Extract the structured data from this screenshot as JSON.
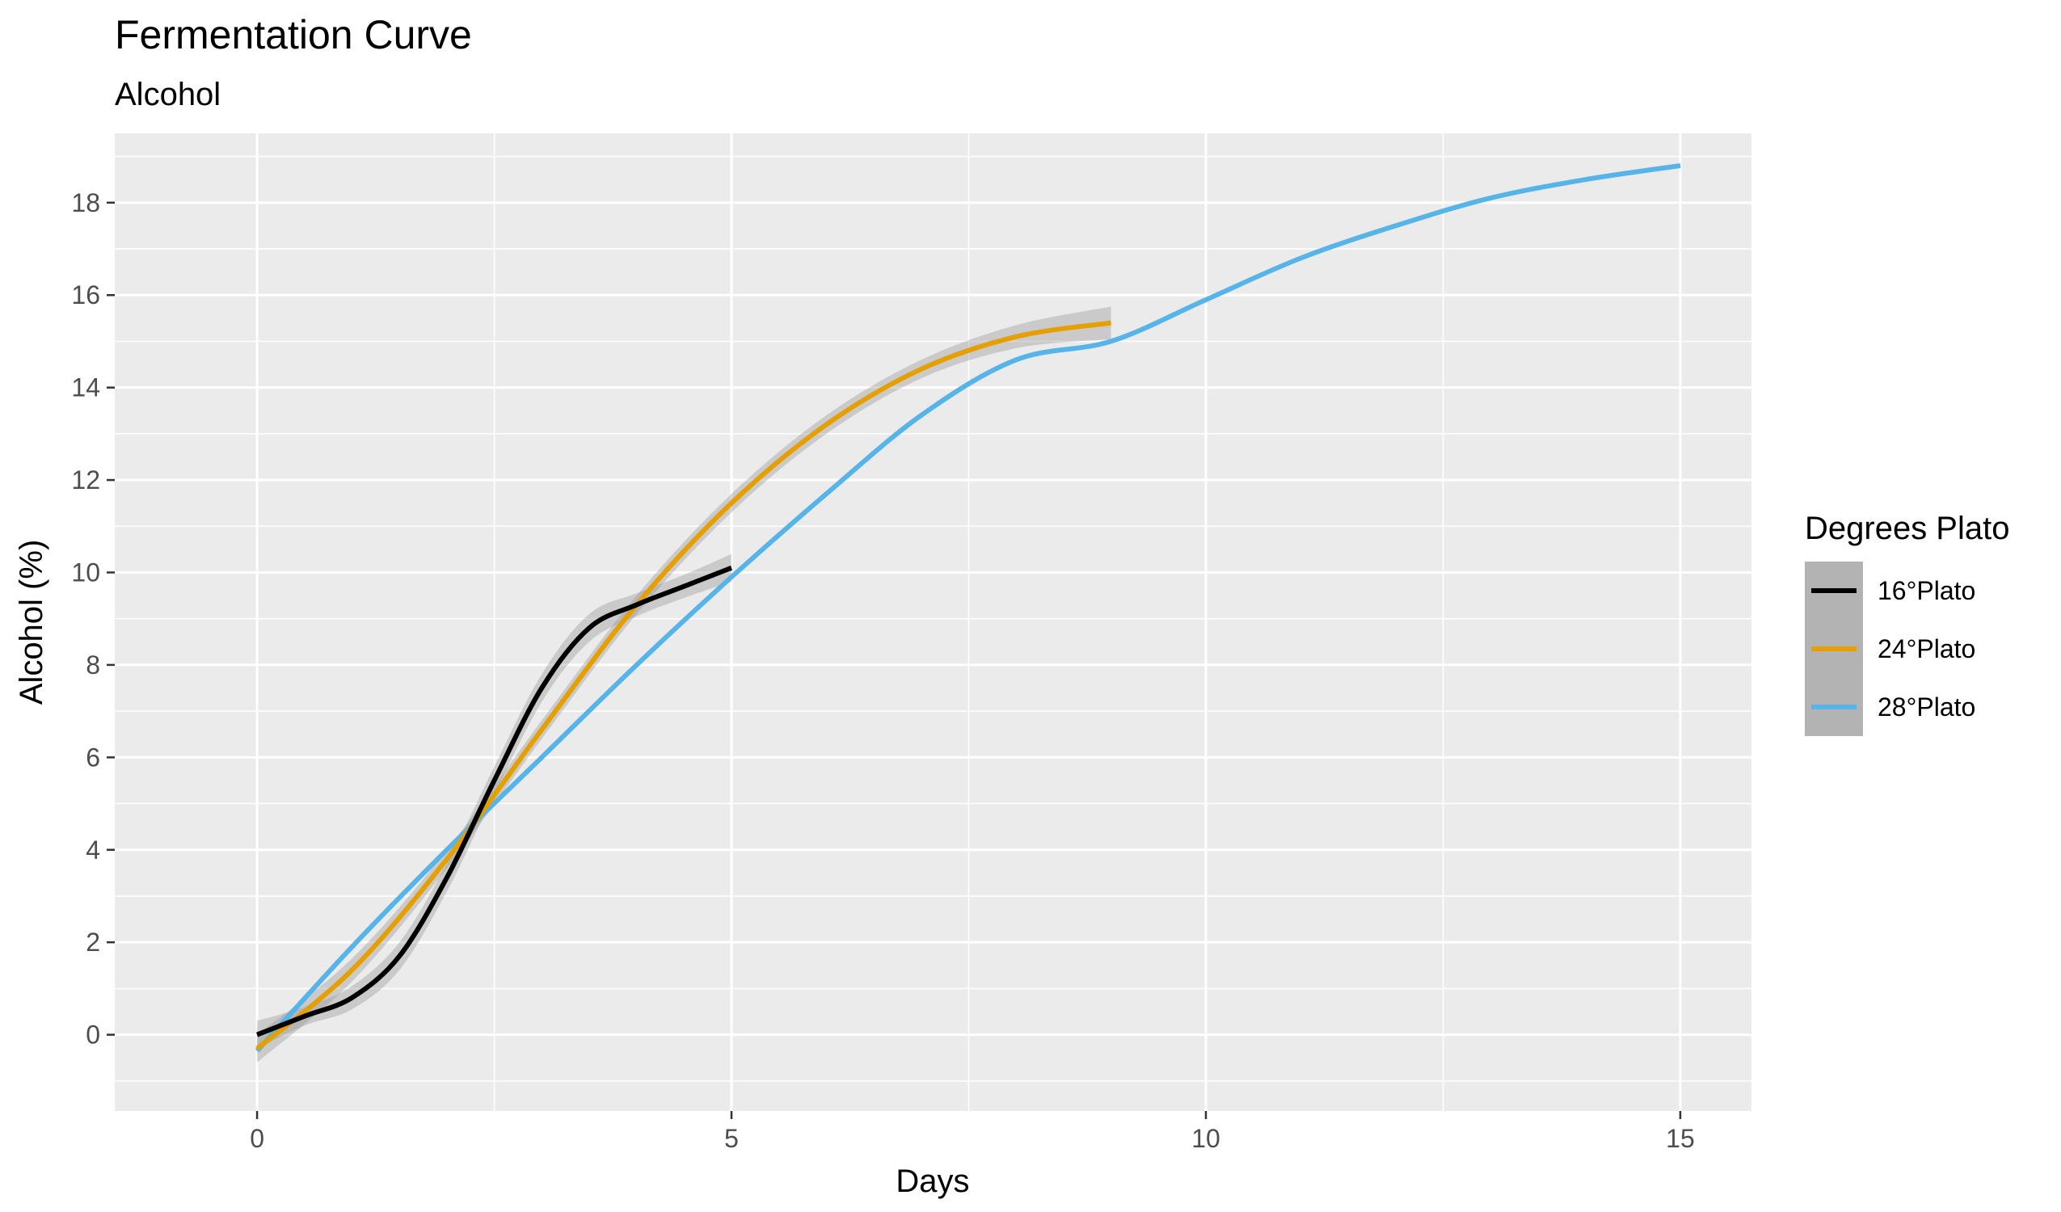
{
  "chart_data": {
    "type": "line",
    "title": "Fermentation Curve",
    "subtitle": "Alcohol",
    "xlabel": "Days",
    "ylabel": "Alcohol (%)",
    "xlim": [
      -1.5,
      15.75
    ],
    "ylim": [
      -1.65,
      19.5
    ],
    "x_ticks": [
      0,
      5,
      10,
      15
    ],
    "y_ticks": [
      0,
      2,
      4,
      6,
      8,
      10,
      12,
      14,
      16,
      18
    ],
    "grid": true,
    "legend": {
      "title": "Degrees Plato",
      "placement": "right"
    },
    "series": [
      {
        "name": "16°Plato",
        "color": "#000000",
        "confidence_band": true,
        "points": [
          [
            0,
            0
          ],
          [
            0.5,
            0.4
          ],
          [
            1,
            0.8
          ],
          [
            1.5,
            1.7
          ],
          [
            2,
            3.4
          ],
          [
            2.5,
            5.5
          ],
          [
            3,
            7.5
          ],
          [
            3.5,
            8.8
          ],
          [
            4,
            9.3
          ],
          [
            4.5,
            9.7
          ],
          [
            5,
            10.1
          ]
        ],
        "band_halfwidth": [
          0.3,
          0.2,
          0.25,
          0.3,
          0.3,
          0.3,
          0.3,
          0.3,
          0.25,
          0.25,
          0.3
        ]
      },
      {
        "name": "24°Plato",
        "color": "#E69F00",
        "confidence_band": true,
        "points": [
          [
            0,
            -0.3
          ],
          [
            1,
            1.4
          ],
          [
            2,
            3.8
          ],
          [
            3,
            6.6
          ],
          [
            4,
            9.3
          ],
          [
            5,
            11.5
          ],
          [
            6,
            13.2
          ],
          [
            7,
            14.4
          ],
          [
            8,
            15.1
          ],
          [
            9,
            15.4
          ]
        ],
        "band_halfwidth": [
          0.3,
          0.25,
          0.2,
          0.2,
          0.2,
          0.2,
          0.2,
          0.2,
          0.25,
          0.35
        ]
      },
      {
        "name": "28°Plato",
        "color": "#56B4E9",
        "confidence_band": false,
        "points": [
          [
            0,
            -0.35
          ],
          [
            1,
            1.9
          ],
          [
            2,
            4.0
          ],
          [
            3,
            6.0
          ],
          [
            4,
            8.0
          ],
          [
            5,
            9.9
          ],
          [
            6,
            11.7
          ],
          [
            7,
            13.4
          ],
          [
            8,
            14.6
          ],
          [
            9,
            15.0
          ],
          [
            10,
            15.9
          ],
          [
            11,
            16.8
          ],
          [
            12,
            17.5
          ],
          [
            13,
            18.1
          ],
          [
            14,
            18.5
          ],
          [
            15,
            18.8
          ]
        ]
      }
    ]
  }
}
